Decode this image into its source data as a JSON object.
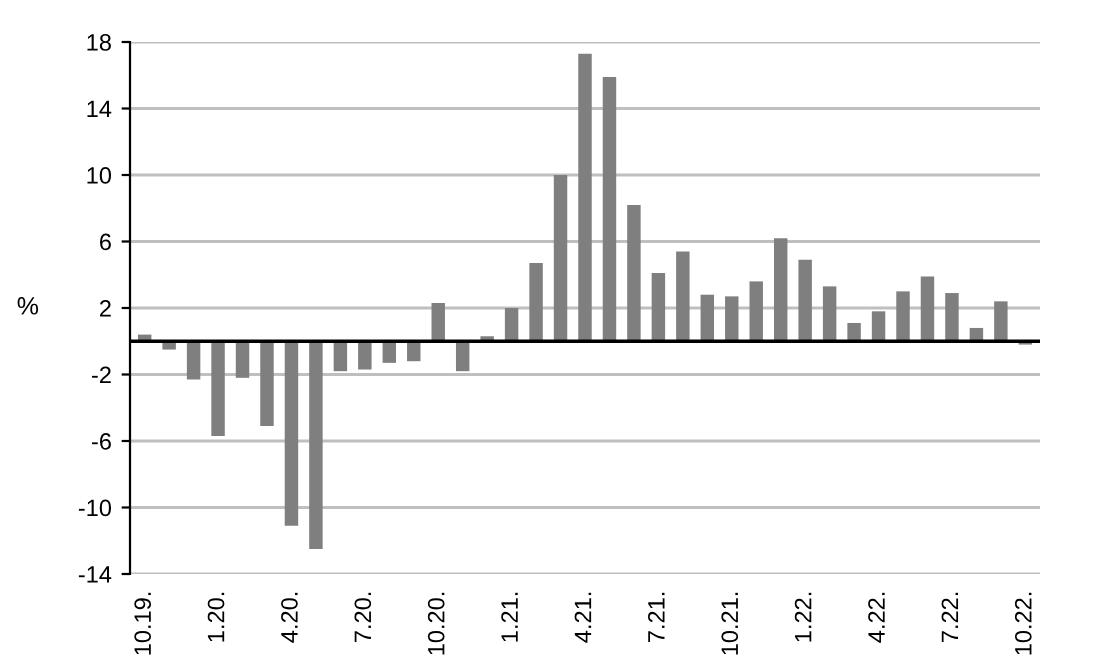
{
  "chart_data": {
    "type": "bar",
    "ylabel": "%",
    "categories": [
      "10.19.",
      null,
      null,
      "1.20.",
      null,
      null,
      "4.20.",
      null,
      null,
      "7.20.",
      null,
      null,
      "10.20.",
      null,
      null,
      "1.21.",
      null,
      null,
      "4.21.",
      null,
      null,
      "7.21.",
      null,
      null,
      "10.21.",
      null,
      null,
      "1.22.",
      null,
      null,
      "4.22.",
      null,
      null,
      "7.22.",
      null,
      null,
      "10.22."
    ],
    "values": [
      0.4,
      -0.5,
      -2.3,
      -5.7,
      -2.2,
      -5.1,
      -11.1,
      -12.5,
      -1.8,
      -1.7,
      -1.3,
      -1.2,
      2.3,
      -1.8,
      0.3,
      2.0,
      4.7,
      10.0,
      17.3,
      15.9,
      8.2,
      4.1,
      5.4,
      2.8,
      2.7,
      3.6,
      6.2,
      4.9,
      3.3,
      1.1,
      1.8,
      3.0,
      3.9,
      2.9,
      0.8,
      2.4,
      -0.2
    ],
    "color": "#7f7f7f",
    "ylim": [
      -14,
      18
    ],
    "yticks": [
      -14,
      -10,
      -6,
      -2,
      2,
      6,
      10,
      14,
      18
    ],
    "grid": "y",
    "legend": false
  }
}
